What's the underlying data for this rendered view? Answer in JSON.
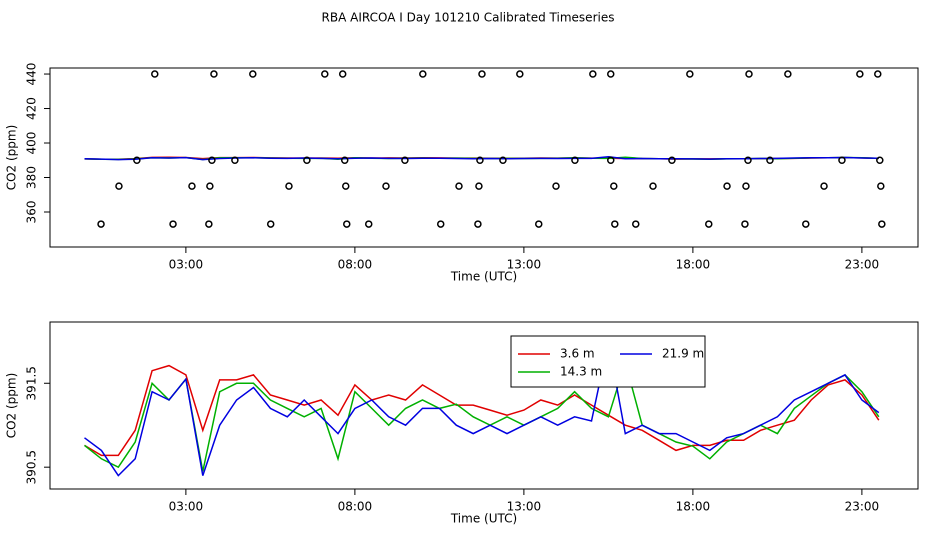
{
  "title": "RBA AIRCOA I  Day 101210  Calibrated Timeseries",
  "chart_data": [
    {
      "type": "line",
      "xlabel": "Time (UTC)",
      "ylabel": "CO2 (ppm)",
      "xlim": [
        -1.02,
        24.66
      ],
      "ylim": [
        339.7,
        443.5
      ],
      "xticks": [
        {
          "value": 3,
          "label": "03:00"
        },
        {
          "value": 8,
          "label": "08:00"
        },
        {
          "value": 13,
          "label": "13:00"
        },
        {
          "value": 18,
          "label": "18:00"
        },
        {
          "value": 23,
          "label": "23:00"
        }
      ],
      "yticks": [
        360,
        380,
        400,
        420,
        440
      ],
      "x": [
        0,
        0.5,
        1,
        1.5,
        2,
        2.5,
        3,
        3.5,
        4,
        4.5,
        5,
        5.5,
        6,
        6.5,
        7,
        7.5,
        8,
        8.5,
        9,
        9.5,
        10,
        10.5,
        11,
        11.5,
        12,
        12.5,
        13,
        13.5,
        14,
        14.5,
        15,
        15.5,
        16,
        16.5,
        17,
        17.5,
        18,
        18.5,
        19,
        19.5,
        20,
        20.5,
        21,
        21.5,
        22,
        22.5,
        23,
        23.5
      ],
      "series": [
        {
          "color": "#e00000",
          "values": [
            390.76,
            390.64,
            390.64,
            390.94,
            391.65,
            391.71,
            391.6,
            390.94,
            391.54,
            391.54,
            391.6,
            391.36,
            391.3,
            391.24,
            391.3,
            391.12,
            391.48,
            391.3,
            391.36,
            391.3,
            391.48,
            391.36,
            391.24,
            391.24,
            391.18,
            391.12,
            391.18,
            391.3,
            391.24,
            391.36,
            391.24,
            391.12,
            391.0,
            390.94,
            390.82,
            390.7,
            390.76,
            390.76,
            390.82,
            390.82,
            390.94,
            391.0,
            391.06,
            391.3,
            391.48,
            391.54,
            391.36,
            391.06
          ]
        },
        {
          "color": "#00b000",
          "values": [
            390.76,
            390.6,
            390.5,
            390.8,
            391.5,
            391.3,
            391.55,
            390.45,
            391.4,
            391.5,
            391.5,
            391.3,
            391.2,
            391.1,
            391.2,
            390.6,
            391.4,
            391.2,
            391.0,
            391.2,
            391.3,
            391.2,
            391.25,
            391.1,
            391.0,
            391.1,
            391.0,
            391.1,
            391.2,
            391.4,
            391.2,
            391.1,
            391.75,
            391.0,
            390.9,
            390.8,
            390.75,
            390.6,
            390.8,
            390.9,
            391.0,
            390.9,
            391.2,
            391.35,
            391.5,
            391.6,
            391.4,
            391.1
          ]
        },
        {
          "color": "#0000e0",
          "values": [
            390.85,
            390.7,
            390.4,
            390.6,
            391.4,
            391.3,
            391.55,
            390.4,
            391.0,
            391.3,
            391.45,
            391.2,
            391.1,
            391.3,
            391.1,
            390.9,
            391.2,
            391.3,
            391.1,
            391.0,
            391.2,
            391.2,
            391.0,
            390.9,
            391.0,
            390.9,
            391.0,
            391.1,
            391.0,
            391.1,
            391.05,
            392.0,
            390.9,
            391.0,
            390.9,
            390.9,
            390.8,
            390.7,
            390.85,
            390.9,
            391.0,
            391.1,
            391.3,
            391.4,
            391.5,
            391.6,
            391.3,
            391.15
          ]
        },
        {
          "type": "scatter",
          "color": "#000000",
          "x": [
            2.08,
            3.83,
            4.98,
            7.11,
            7.64,
            10.01,
            11.76,
            12.88,
            15.04,
            15.57,
            17.91,
            19.66,
            20.81,
            22.94,
            23.47,
            1.55,
            3.77,
            4.45,
            6.58,
            7.7,
            9.48,
            11.7,
            12.38,
            14.51,
            15.57,
            17.38,
            19.63,
            20.28,
            22.41,
            23.53,
            1.02,
            3.18,
            3.71,
            6.05,
            7.73,
            8.92,
            11.08,
            11.67,
            13.95,
            15.66,
            16.82,
            19.01,
            19.57,
            21.88,
            23.56,
            0.49,
            2.62,
            3.68,
            5.51,
            7.76,
            8.41,
            10.54,
            11.64,
            13.44,
            15.69,
            16.31,
            18.47,
            19.54,
            21.34,
            23.59
          ],
          "values": [
            440,
            440,
            440,
            440,
            440,
            440,
            440,
            440,
            440,
            440,
            440,
            440,
            440,
            440,
            440,
            390,
            390,
            390,
            390,
            390,
            390,
            390,
            390,
            390,
            390,
            390,
            390,
            390,
            390,
            390,
            375,
            375,
            375,
            375,
            375,
            375,
            375,
            375,
            375,
            375,
            375,
            375,
            375,
            375,
            375,
            353,
            353,
            353,
            353,
            353,
            353,
            353,
            353,
            353,
            353,
            353,
            353,
            353,
            353,
            353
          ]
        }
      ]
    },
    {
      "type": "line",
      "xlabel": "Time (UTC)",
      "ylabel": "CO2 (ppm)",
      "legend": "top",
      "xlim": [
        -1.02,
        24.66
      ],
      "ylim": [
        390.24,
        392.23
      ],
      "xticks": [
        {
          "value": 3,
          "label": "03:00"
        },
        {
          "value": 8,
          "label": "08:00"
        },
        {
          "value": 13,
          "label": "13:00"
        },
        {
          "value": 18,
          "label": "18:00"
        },
        {
          "value": 23,
          "label": "23:00"
        }
      ],
      "yticks": [
        390.5,
        391.5
      ],
      "x": [
        0,
        0.5,
        1,
        1.5,
        2,
        2.5,
        3,
        3.5,
        4,
        4.5,
        5,
        5.5,
        6,
        6.5,
        7,
        7.5,
        8,
        8.5,
        9,
        9.5,
        10,
        10.5,
        11,
        11.5,
        12,
        12.5,
        13,
        13.5,
        14,
        14.5,
        15,
        15.5,
        16,
        16.5,
        17,
        17.5,
        18,
        18.5,
        19,
        19.5,
        20,
        20.5,
        21,
        21.5,
        22,
        22.5,
        23,
        23.5
      ],
      "series": [
        {
          "name": "3.6 m",
          "color": "#e00000",
          "values": [
            390.76,
            390.64,
            390.64,
            390.94,
            391.65,
            391.71,
            391.6,
            390.94,
            391.54,
            391.54,
            391.6,
            391.36,
            391.3,
            391.24,
            391.3,
            391.12,
            391.48,
            391.3,
            391.36,
            391.3,
            391.48,
            391.36,
            391.24,
            391.24,
            391.18,
            391.12,
            391.18,
            391.3,
            391.24,
            391.36,
            391.24,
            391.12,
            391.0,
            390.94,
            390.82,
            390.7,
            390.76,
            390.76,
            390.82,
            390.82,
            390.94,
            391.0,
            391.06,
            391.3,
            391.48,
            391.54,
            391.36,
            391.06
          ]
        },
        {
          "name": "14.3 m",
          "color": "#00b000",
          "values": [
            390.76,
            390.6,
            390.5,
            390.8,
            391.5,
            391.3,
            391.55,
            390.45,
            391.4,
            391.5,
            391.5,
            391.3,
            391.2,
            391.1,
            391.2,
            390.6,
            391.4,
            391.2,
            391.0,
            391.2,
            391.3,
            391.2,
            391.25,
            391.1,
            391.0,
            391.1,
            391.0,
            391.1,
            391.2,
            391.4,
            391.2,
            391.1,
            391.75,
            391.0,
            390.9,
            390.8,
            390.75,
            390.6,
            390.8,
            390.9,
            391.0,
            390.9,
            391.2,
            391.35,
            391.5,
            391.6,
            391.4,
            391.1
          ]
        },
        {
          "name": "21.9 m",
          "color": "#0000e0",
          "values": [
            390.85,
            390.7,
            390.4,
            390.6,
            391.4,
            391.3,
            391.55,
            390.4,
            391.0,
            391.3,
            391.45,
            391.2,
            391.1,
            391.3,
            391.1,
            390.9,
            391.2,
            391.3,
            391.1,
            391.0,
            391.2,
            391.2,
            391.0,
            390.9,
            391.0,
            390.9,
            391.0,
            391.1,
            391.0,
            391.1,
            391.05,
            392.0,
            390.9,
            391.0,
            390.9,
            390.9,
            390.8,
            390.7,
            390.85,
            390.9,
            391.0,
            391.1,
            391.3,
            391.4,
            391.5,
            391.6,
            391.3,
            391.15
          ]
        }
      ]
    }
  ]
}
